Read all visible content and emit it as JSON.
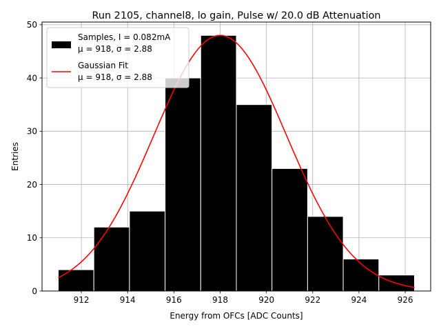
{
  "chart_data": {
    "type": "bar",
    "title": "Run 2105, channel8, lo gain, Pulse w/ 20.0 dB Attenuation",
    "xlabel": "Energy from OFCs [ADC Counts]",
    "ylabel": "Entries",
    "xlim": [
      910.3,
      927.1
    ],
    "ylim": [
      0,
      50.5
    ],
    "xticks": [
      912,
      914,
      916,
      918,
      920,
      922,
      924,
      926
    ],
    "yticks": [
      0,
      10,
      20,
      30,
      40,
      50
    ],
    "grid": true,
    "legend_position": "top-left",
    "bins": {
      "edges": [
        911.0,
        912.54,
        914.08,
        915.62,
        917.16,
        918.7,
        920.24,
        921.78,
        923.32,
        924.86,
        926.4
      ],
      "counts": [
        4,
        12,
        15,
        40,
        48,
        35,
        23,
        14,
        6,
        3
      ]
    },
    "fit": {
      "mu": 918.0,
      "sigma": 2.88,
      "amplitude": 48.0,
      "x_range": [
        911.0,
        926.4
      ]
    },
    "series": [
      {
        "name": "Samples, I = 0.082mA",
        "name_line2": "μ = 918, σ = 2.88",
        "color": "#000000",
        "kind": "histogram"
      },
      {
        "name": "Gaussian Fit",
        "name_line2": "μ = 918, σ = 2.88",
        "color": "#ff0000",
        "kind": "line"
      }
    ]
  }
}
